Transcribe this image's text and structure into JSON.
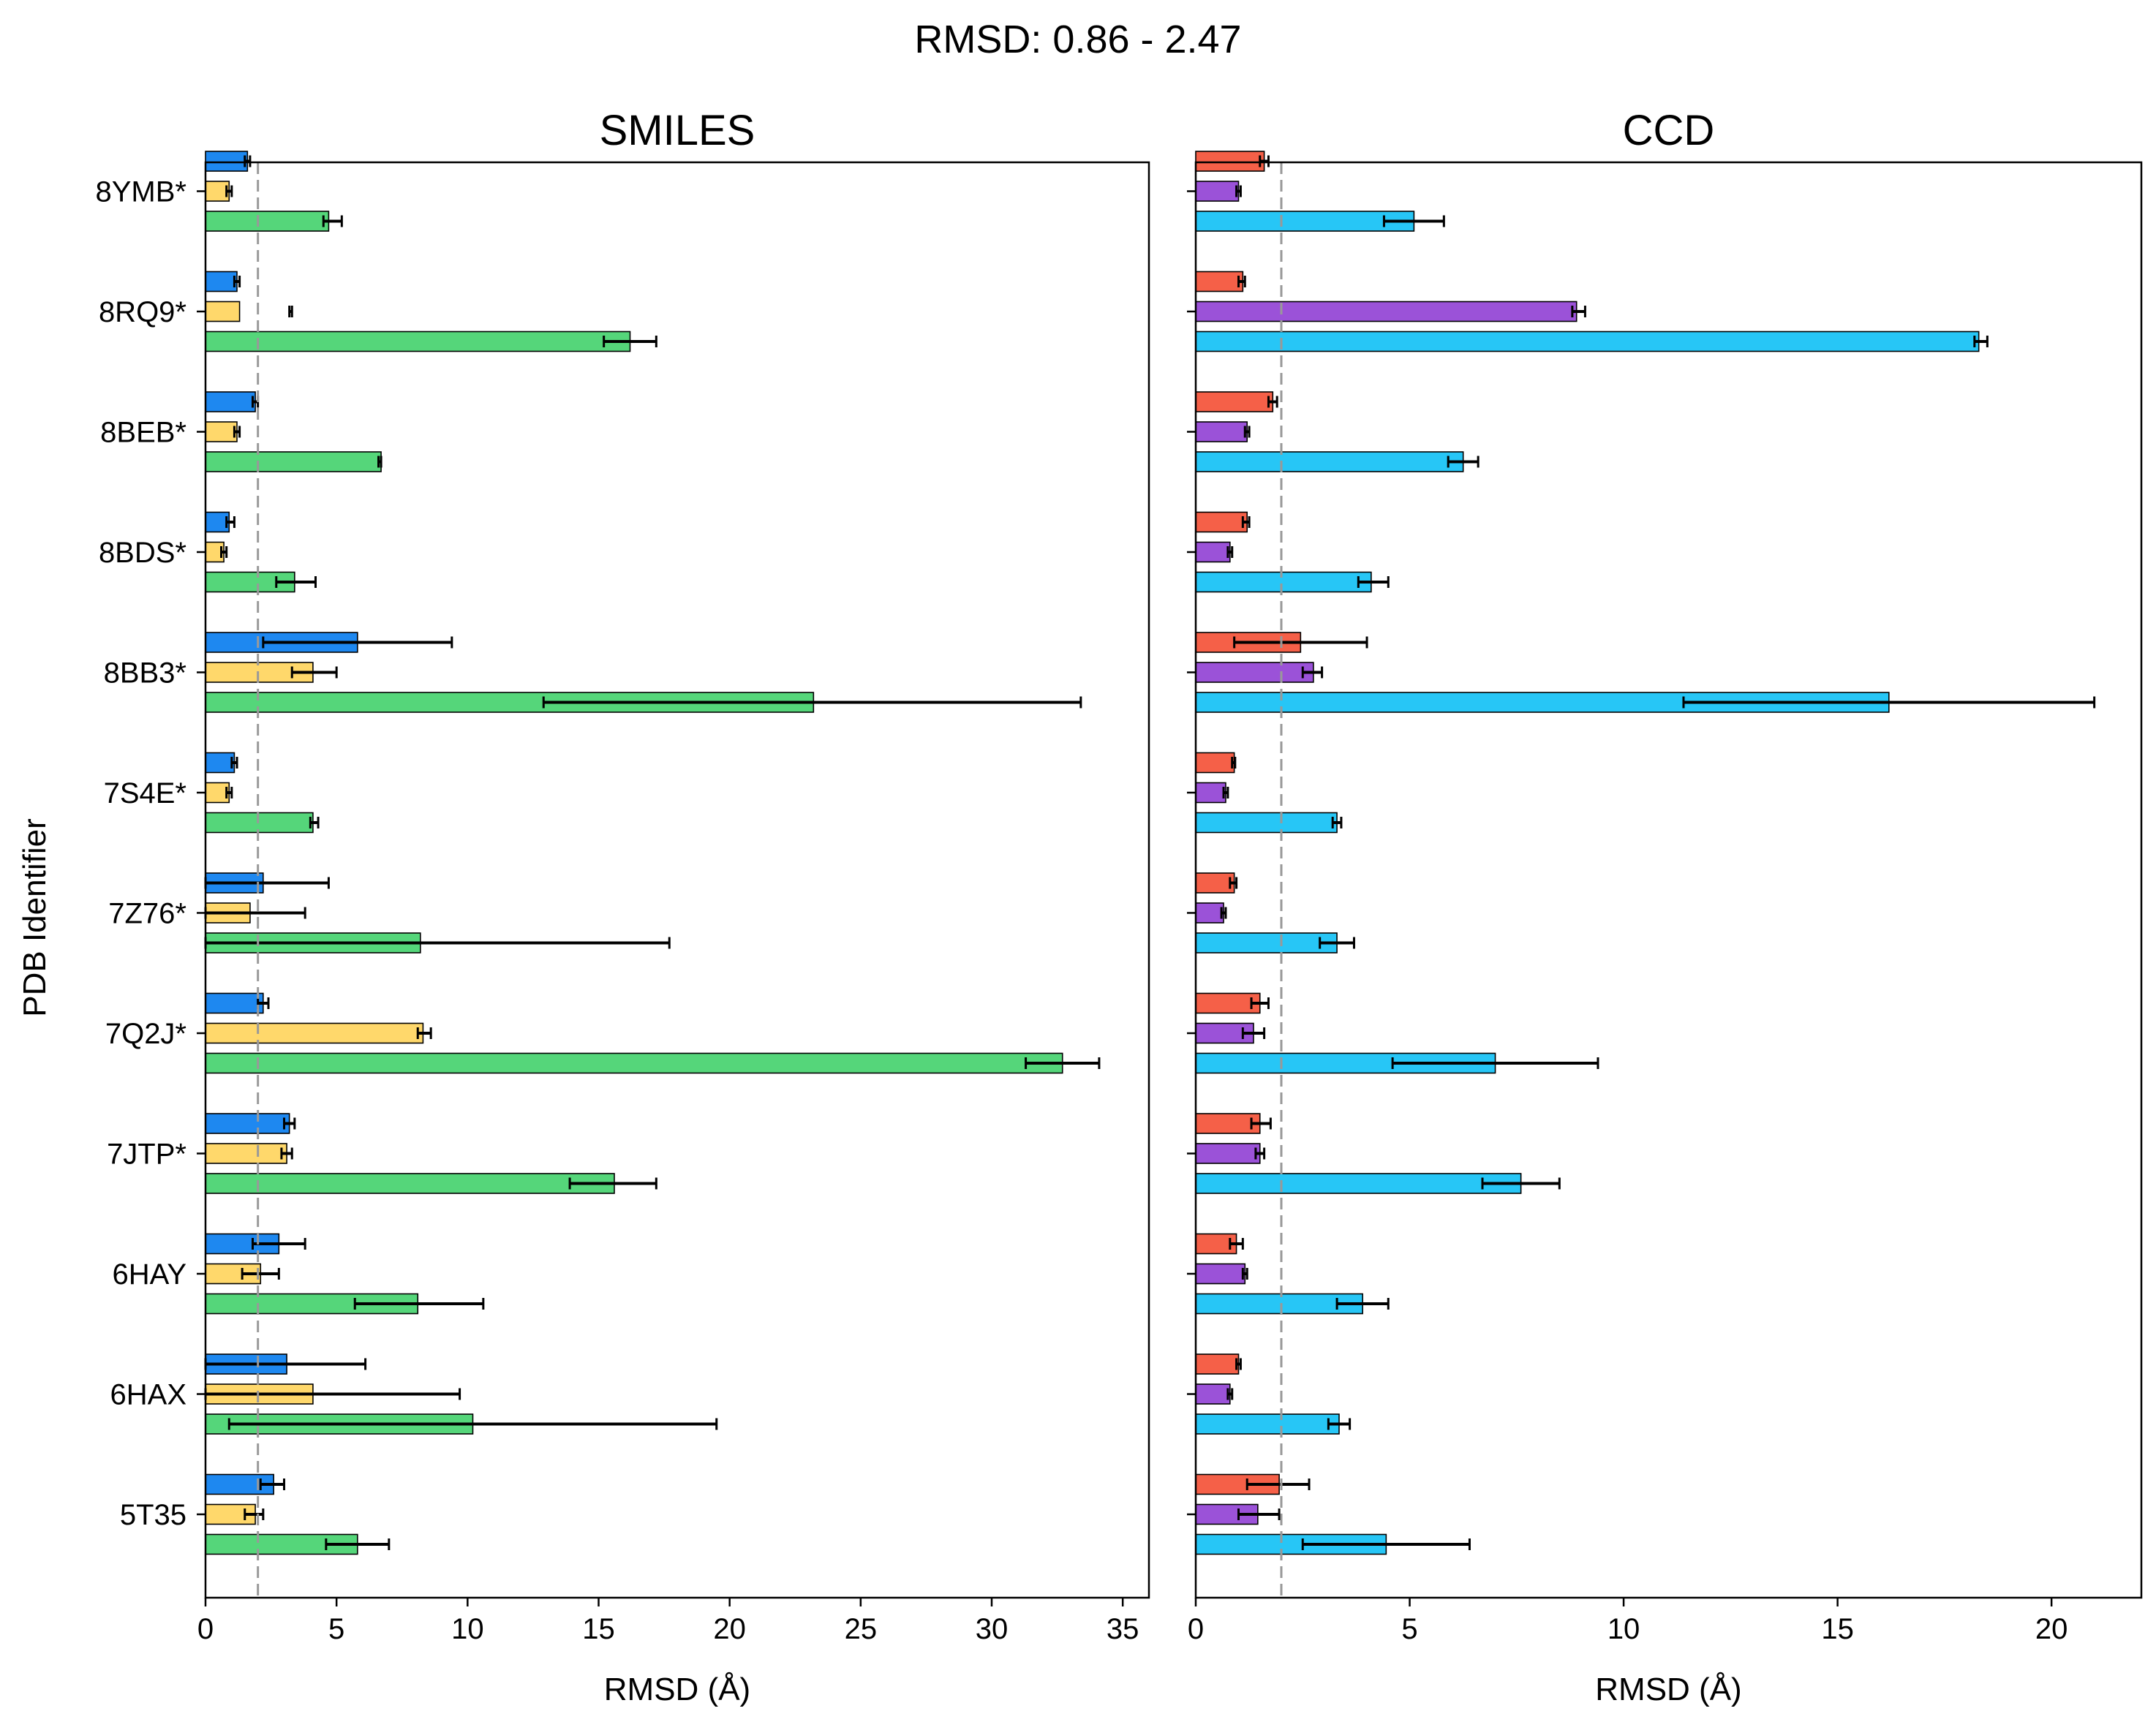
{
  "suptitle": "RMSD: 0.86 - 2.47",
  "ylabel": "PDB Identifier",
  "chart_data": [
    {
      "type": "bar",
      "orientation": "horizontal",
      "title": "SMILES",
      "xlabel": "RMSD (Å)",
      "xlim": [
        0,
        36
      ],
      "xticks": [
        0,
        5,
        10,
        15,
        20,
        25,
        30,
        35
      ],
      "reference_line": 2,
      "categories": [
        "8YMB*",
        "8RQ9*",
        "8BEB*",
        "8BDS*",
        "8BB3*",
        "7S4E*",
        "7Z76*",
        "7Q2J*",
        "7JTP*",
        "6HAY",
        "6HAX",
        "5T35"
      ],
      "series": [
        {
          "color": "#1e88f0",
          "values": [
            1.6,
            1.2,
            1.9,
            0.9,
            5.8,
            1.1,
            2.2,
            2.2,
            3.2,
            2.8,
            3.1,
            2.6
          ],
          "error_low": [
            1.5,
            1.1,
            1.8,
            0.8,
            2.2,
            1.0,
            0.0,
            2.0,
            3.0,
            1.8,
            0.0,
            2.1
          ],
          "error_high": [
            1.7,
            1.3,
            2.0,
            1.1,
            9.4,
            1.2,
            4.7,
            2.4,
            3.4,
            3.8,
            6.1,
            3.0
          ]
        },
        {
          "color": "#ffd86b",
          "values": [
            0.9,
            1.3,
            1.2,
            0.7,
            4.1,
            0.9,
            1.7,
            8.3,
            3.1,
            2.1,
            4.1,
            1.9
          ],
          "error_low": [
            0.8,
            3.2,
            1.1,
            0.6,
            3.3,
            0.8,
            0.0,
            8.1,
            2.9,
            1.4,
            0.0,
            1.5
          ],
          "error_high": [
            1.0,
            3.3,
            1.3,
            0.8,
            5.0,
            1.0,
            3.8,
            8.6,
            3.3,
            2.8,
            9.7,
            2.2
          ]
        },
        {
          "color": "#55d67a",
          "values": [
            4.7,
            16.2,
            6.7,
            3.4,
            23.2,
            4.1,
            8.2,
            32.7,
            15.6,
            8.1,
            10.2,
            5.8
          ],
          "error_low": [
            4.5,
            15.2,
            6.6,
            2.7,
            12.9,
            4.0,
            0.0,
            31.3,
            13.9,
            5.7,
            0.9,
            4.6
          ],
          "error_high": [
            5.2,
            17.2,
            6.7,
            4.2,
            33.4,
            4.3,
            17.7,
            34.1,
            17.2,
            10.6,
            19.5,
            7.0
          ]
        }
      ]
    },
    {
      "type": "bar",
      "orientation": "horizontal",
      "title": "CCD",
      "xlabel": "RMSD (Å)",
      "xlim": [
        0,
        22.1
      ],
      "xticks": [
        0,
        5,
        10,
        15,
        20
      ],
      "reference_line": 2,
      "categories": [
        "8YMB*",
        "8RQ9*",
        "8BEB*",
        "8BDS*",
        "8BB3*",
        "7S4E*",
        "7Z76*",
        "7Q2J*",
        "7JTP*",
        "6HAY",
        "6HAX",
        "5T35"
      ],
      "series": [
        {
          "color": "#f56048",
          "values": [
            1.6,
            1.1,
            1.8,
            1.2,
            2.45,
            0.9,
            0.9,
            1.5,
            1.5,
            0.95,
            1.0,
            1.95
          ],
          "error_low": [
            1.5,
            1.0,
            1.7,
            1.1,
            0.9,
            0.85,
            0.8,
            1.3,
            1.3,
            0.8,
            0.95,
            1.2
          ],
          "error_high": [
            1.7,
            1.15,
            1.9,
            1.25,
            4.0,
            0.92,
            0.95,
            1.7,
            1.75,
            1.1,
            1.05,
            2.65
          ]
        },
        {
          "color": "#9b52d8",
          "values": [
            1.0,
            8.9,
            1.2,
            0.8,
            2.75,
            0.7,
            0.65,
            1.35,
            1.5,
            1.15,
            0.8,
            1.45
          ],
          "error_low": [
            0.95,
            8.8,
            1.15,
            0.75,
            2.5,
            0.65,
            0.6,
            1.1,
            1.4,
            1.1,
            0.75,
            1.0
          ],
          "error_high": [
            1.05,
            9.1,
            1.25,
            0.85,
            2.95,
            0.75,
            0.7,
            1.6,
            1.6,
            1.2,
            0.85,
            1.95
          ]
        },
        {
          "color": "#27c6f6",
          "values": [
            5.1,
            18.3,
            6.25,
            4.1,
            16.2,
            3.3,
            3.3,
            7.0,
            7.6,
            3.9,
            3.35,
            4.45
          ],
          "error_low": [
            4.4,
            18.2,
            5.9,
            3.8,
            11.4,
            3.2,
            2.9,
            4.6,
            6.7,
            3.3,
            3.1,
            2.5
          ],
          "error_high": [
            5.8,
            18.5,
            6.6,
            4.5,
            21.0,
            3.4,
            3.7,
            9.4,
            8.5,
            4.5,
            3.6,
            6.4
          ]
        }
      ]
    }
  ]
}
